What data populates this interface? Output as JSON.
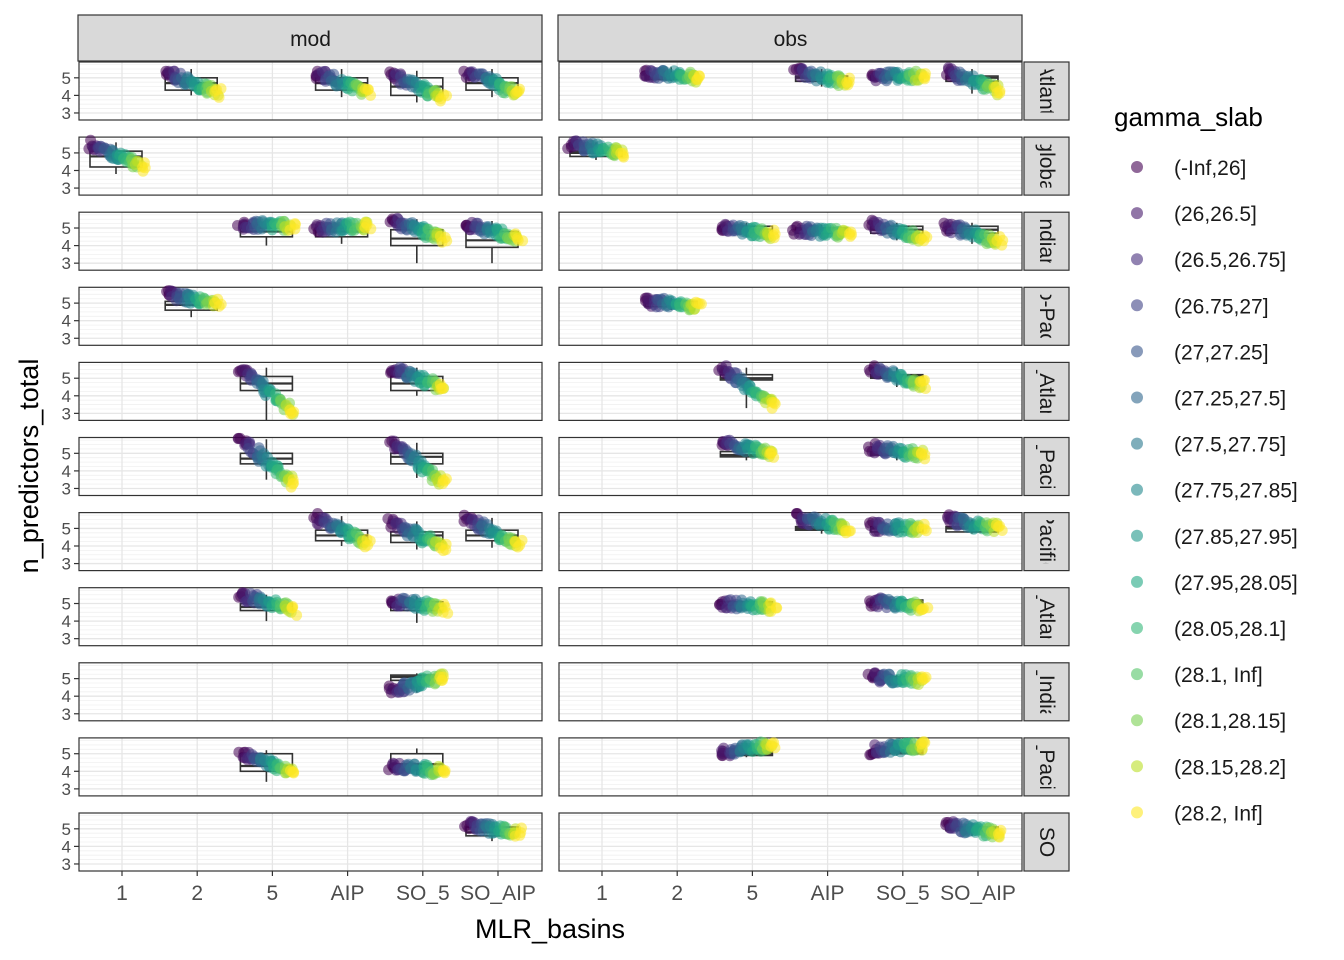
{
  "chart_data": {
    "type": "scatter",
    "xlabel": "MLR_basins",
    "ylabel": "n_predictors_total",
    "x_categories": [
      "1",
      "2",
      "5",
      "AIP",
      "SO_5",
      "SO_AIP"
    ],
    "y_ticks": [
      "3",
      "4",
      "5"
    ],
    "ylim": [
      2.6,
      5.9
    ],
    "columns": [
      "mod",
      "obs"
    ],
    "rows": [
      "Atlantic",
      "global",
      "Indian",
      "Indo-Pacific",
      "N_Atlantic",
      "N_Pacific",
      "Pacific",
      "S_Atlantic",
      "S_Indian",
      "S_Pacific",
      "SO"
    ],
    "strip_text_visible": [
      "Atlanti",
      "globa",
      "Indian",
      "o-Pac",
      "_Atlan",
      "_Pacif",
      "Pacific",
      "_Atlan",
      "_India",
      "_Pacif",
      "SO"
    ],
    "legend": {
      "title": "gamma_slab",
      "labels": [
        "(-Inf,26]",
        "(26,26.5]",
        "(26.5,26.75]",
        "(26.75,27]",
        "(27,27.25]",
        "(27.25,27.5]",
        "(27.5,27.75]",
        "(27.75,27.85]",
        "(27.85,27.95]",
        "(27.95,28.05]",
        "(28.05,28.1]",
        "(28.1, Inf]",
        "(28.1,28.15]",
        "(28.15,28.2]",
        "(28.2, Inf]"
      ],
      "colors": [
        "#440154",
        "#481a6c",
        "#472f7d",
        "#414487",
        "#39568c",
        "#31688e",
        "#2a788e",
        "#23888e",
        "#1f988b",
        "#22a884",
        "#35b779",
        "#54c568",
        "#7ad151",
        "#bbdf27",
        "#fde725"
      ]
    },
    "panels": [
      {
        "row": "Atlantic",
        "col": "mod",
        "groups": [
          {
            "x": "2",
            "start": 5.3,
            "end": 4.1,
            "q1": 4.3,
            "median": 4.7,
            "q3": 5.0,
            "wmin": 4.0,
            "wmax": 5.5
          },
          {
            "x": "AIP",
            "start": 5.3,
            "end": 4.1,
            "q1": 4.3,
            "median": 4.7,
            "q3": 5.0,
            "wmin": 3.9,
            "wmax": 5.5
          },
          {
            "x": "SO_5",
            "start": 5.2,
            "end": 3.8,
            "q1": 4.0,
            "median": 4.5,
            "q3": 5.0,
            "wmin": 3.6,
            "wmax": 5.4
          },
          {
            "x": "SO_AIP",
            "start": 5.3,
            "end": 4.1,
            "q1": 4.3,
            "median": 4.7,
            "q3": 5.0,
            "wmin": 3.9,
            "wmax": 5.5
          }
        ]
      },
      {
        "row": "Atlantic",
        "col": "obs",
        "groups": [
          {
            "x": "2",
            "start": 5.3,
            "end": 5.0,
            "q1": 4.9,
            "median": 5.0,
            "q3": 5.1,
            "wmin": 4.8,
            "wmax": 5.6
          },
          {
            "x": "AIP",
            "start": 5.4,
            "end": 4.7,
            "q1": 4.8,
            "median": 5.0,
            "q3": 5.1,
            "wmin": 4.5,
            "wmax": 5.5
          },
          {
            "x": "SO_5",
            "start": 5.1,
            "end": 5.1,
            "q1": 4.9,
            "median": 5.0,
            "q3": 5.1,
            "wmin": 4.8,
            "wmax": 5.3
          },
          {
            "x": "SO_AIP",
            "start": 5.4,
            "end": 4.2,
            "q1": 4.8,
            "median": 5.0,
            "q3": 5.1,
            "wmin": 4.1,
            "wmax": 5.5
          }
        ]
      },
      {
        "row": "global",
        "col": "mod",
        "groups": [
          {
            "x": "1",
            "start": 5.5,
            "end": 4.2,
            "q1": 4.2,
            "median": 4.8,
            "q3": 5.1,
            "wmin": 3.8,
            "wmax": 5.6
          }
        ]
      },
      {
        "row": "global",
        "col": "obs",
        "groups": [
          {
            "x": "1",
            "start": 5.5,
            "end": 5.0,
            "q1": 4.8,
            "median": 5.0,
            "q3": 5.1,
            "wmin": 4.6,
            "wmax": 5.6
          }
        ]
      },
      {
        "row": "Indian",
        "col": "mod",
        "groups": [
          {
            "x": "5",
            "start": 5.2,
            "end": 5.1,
            "q1": 4.5,
            "median": 4.8,
            "q3": 5.0,
            "wmin": 4.0,
            "wmax": 5.3
          },
          {
            "x": "AIP",
            "start": 5.0,
            "end": 5.1,
            "q1": 4.5,
            "median": 4.8,
            "q3": 5.0,
            "wmin": 4.1,
            "wmax": 5.2
          },
          {
            "x": "SO_5",
            "start": 5.4,
            "end": 4.4,
            "q1": 4.0,
            "median": 4.4,
            "q3": 4.9,
            "wmin": 3.0,
            "wmax": 5.5
          },
          {
            "x": "SO_AIP",
            "start": 5.2,
            "end": 4.4,
            "q1": 3.9,
            "median": 4.3,
            "q3": 4.8,
            "wmin": 3.0,
            "wmax": 5.4
          }
        ]
      },
      {
        "row": "Indian",
        "col": "obs",
        "groups": [
          {
            "x": "5",
            "start": 5.1,
            "end": 4.6,
            "q1": 4.8,
            "median": 4.9,
            "q3": 5.1,
            "wmin": 4.5,
            "wmax": 5.3
          },
          {
            "x": "AIP",
            "start": 4.9,
            "end": 4.7,
            "q1": 4.7,
            "median": 4.9,
            "q3": 5.0,
            "wmin": 4.5,
            "wmax": 5.2
          },
          {
            "x": "SO_5",
            "start": 5.2,
            "end": 4.4,
            "q1": 4.7,
            "median": 4.9,
            "q3": 5.1,
            "wmin": 4.3,
            "wmax": 5.3
          },
          {
            "x": "SO_AIP",
            "start": 5.1,
            "end": 4.2,
            "q1": 4.7,
            "median": 4.9,
            "q3": 5.1,
            "wmin": 4.1,
            "wmax": 5.3
          }
        ]
      },
      {
        "row": "Indo-Pacific",
        "col": "mod",
        "groups": [
          {
            "x": "2",
            "start": 5.5,
            "end": 5.0,
            "q1": 4.6,
            "median": 4.9,
            "q3": 5.1,
            "wmin": 4.2,
            "wmax": 5.6
          }
        ]
      },
      {
        "row": "Indo-Pacific",
        "col": "obs",
        "groups": [
          {
            "x": "2",
            "start": 5.1,
            "end": 4.8,
            "q1": 4.8,
            "median": 5.0,
            "q3": 5.1,
            "wmin": 4.6,
            "wmax": 5.3
          }
        ]
      },
      {
        "row": "N_Atlantic",
        "col": "mod",
        "groups": [
          {
            "x": "5",
            "start": 5.6,
            "end": 3.0,
            "q1": 4.3,
            "median": 4.7,
            "q3": 5.1,
            "wmin": 2.6,
            "wmax": 5.6
          },
          {
            "x": "SO_5",
            "start": 5.6,
            "end": 4.4,
            "q1": 4.3,
            "median": 4.7,
            "q3": 5.1,
            "wmin": 4.0,
            "wmax": 5.6
          }
        ]
      },
      {
        "row": "N_Atlantic",
        "col": "obs",
        "groups": [
          {
            "x": "5",
            "start": 5.6,
            "end": 3.4,
            "q1": 4.9,
            "median": 5.0,
            "q3": 5.2,
            "wmin": 3.3,
            "wmax": 5.6
          },
          {
            "x": "SO_5",
            "start": 5.5,
            "end": 4.6,
            "q1": 5.0,
            "median": 5.1,
            "q3": 5.2,
            "wmin": 4.5,
            "wmax": 5.6
          }
        ]
      },
      {
        "row": "N_Pacific",
        "col": "mod",
        "groups": [
          {
            "x": "5",
            "start": 5.8,
            "end": 3.2,
            "q1": 4.4,
            "median": 4.7,
            "q3": 5.0,
            "wmin": 3.5,
            "wmax": 5.8
          },
          {
            "x": "SO_5",
            "start": 5.6,
            "end": 3.3,
            "q1": 4.4,
            "median": 4.8,
            "q3": 5.0,
            "wmin": 3.6,
            "wmax": 5.6
          }
        ]
      },
      {
        "row": "N_Pacific",
        "col": "obs",
        "groups": [
          {
            "x": "5",
            "start": 5.6,
            "end": 5.0,
            "q1": 4.8,
            "median": 4.9,
            "q3": 5.1,
            "wmin": 4.6,
            "wmax": 5.6
          },
          {
            "x": "SO_5",
            "start": 5.3,
            "end": 4.9,
            "q1": 4.9,
            "median": 5.0,
            "q3": 5.1,
            "wmin": 4.6,
            "wmax": 5.4
          }
        ]
      },
      {
        "row": "Pacific",
        "col": "mod",
        "groups": [
          {
            "x": "AIP",
            "start": 5.6,
            "end": 4.1,
            "q1": 4.3,
            "median": 4.6,
            "q3": 4.9,
            "wmin": 4.0,
            "wmax": 5.7
          },
          {
            "x": "SO_5",
            "start": 5.3,
            "end": 3.9,
            "q1": 4.2,
            "median": 4.6,
            "q3": 4.8,
            "wmin": 3.8,
            "wmax": 5.4
          },
          {
            "x": "SO_AIP",
            "start": 5.5,
            "end": 4.1,
            "q1": 4.3,
            "median": 4.6,
            "q3": 4.9,
            "wmin": 3.9,
            "wmax": 5.6
          }
        ]
      },
      {
        "row": "Pacific",
        "col": "obs",
        "groups": [
          {
            "x": "AIP",
            "start": 5.6,
            "end": 5.0,
            "q1": 4.9,
            "median": 5.0,
            "q3": 5.1,
            "wmin": 4.7,
            "wmax": 5.6
          },
          {
            "x": "SO_5",
            "start": 5.1,
            "end": 5.0,
            "q1": 4.8,
            "median": 5.0,
            "q3": 5.1,
            "wmin": 4.6,
            "wmax": 5.3
          },
          {
            "x": "SO_AIP",
            "start": 5.5,
            "end": 5.0,
            "q1": 4.8,
            "median": 5.0,
            "q3": 5.1,
            "wmin": 4.7,
            "wmax": 5.5
          }
        ]
      },
      {
        "row": "S_Atlantic",
        "col": "mod",
        "groups": [
          {
            "x": "5",
            "start": 5.5,
            "end": 4.6,
            "q1": 4.6,
            "median": 4.8,
            "q3": 5.0,
            "wmin": 4.0,
            "wmax": 5.5
          },
          {
            "x": "SO_5",
            "start": 5.2,
            "end": 4.7,
            "q1": 4.6,
            "median": 4.8,
            "q3": 5.1,
            "wmin": 3.9,
            "wmax": 5.4
          }
        ]
      },
      {
        "row": "S_Atlantic",
        "col": "obs",
        "groups": [
          {
            "x": "5",
            "start": 5.0,
            "end": 4.8,
            "q1": 4.9,
            "median": 5.0,
            "q3": 5.1,
            "wmin": 4.6,
            "wmax": 5.2
          },
          {
            "x": "SO_5",
            "start": 5.1,
            "end": 4.8,
            "q1": 5.0,
            "median": 5.1,
            "q3": 5.2,
            "wmin": 4.6,
            "wmax": 5.3
          }
        ]
      },
      {
        "row": "S_Indian",
        "col": "mod",
        "groups": [
          {
            "x": "SO_5",
            "start": 4.3,
            "end": 5.1,
            "q1": 4.9,
            "median": 5.1,
            "q3": 5.2,
            "wmin": 4.2,
            "wmax": 5.3
          }
        ]
      },
      {
        "row": "S_Indian",
        "col": "obs",
        "groups": [
          {
            "x": "SO_5",
            "start": 5.1,
            "end": 4.9,
            "q1": 4.9,
            "median": 5.0,
            "q3": 5.1,
            "wmin": 4.8,
            "wmax": 5.2
          }
        ]
      },
      {
        "row": "S_Pacific",
        "col": "mod",
        "groups": [
          {
            "x": "5",
            "start": 5.0,
            "end": 4.0,
            "q1": 4.0,
            "median": 4.3,
            "q3": 5.0,
            "wmin": 3.4,
            "wmax": 5.2
          },
          {
            "x": "SO_5",
            "start": 4.3,
            "end": 4.0,
            "q1": 4.1,
            "median": 4.4,
            "q3": 5.0,
            "wmin": 3.8,
            "wmax": 5.3
          }
        ]
      },
      {
        "row": "S_Pacific",
        "col": "obs",
        "groups": [
          {
            "x": "5",
            "start": 5.1,
            "end": 5.5,
            "q1": 4.9,
            "median": 5.0,
            "q3": 5.1,
            "wmin": 4.8,
            "wmax": 5.6
          },
          {
            "x": "SO_5",
            "start": 5.2,
            "end": 5.5,
            "q1": 5.0,
            "median": 5.1,
            "q3": 5.2,
            "wmin": 4.9,
            "wmax": 5.6
          }
        ]
      },
      {
        "row": "SO",
        "col": "mod",
        "groups": [
          {
            "x": "SO_AIP",
            "start": 5.2,
            "end": 4.8,
            "q1": 4.6,
            "median": 4.8,
            "q3": 5.1,
            "wmin": 4.3,
            "wmax": 5.3
          }
        ]
      },
      {
        "row": "SO",
        "col": "obs",
        "groups": [
          {
            "x": "SO_AIP",
            "start": 5.2,
            "end": 4.7,
            "q1": 4.9,
            "median": 5.0,
            "q3": 5.1,
            "wmin": 4.6,
            "wmax": 5.3
          }
        ]
      }
    ]
  }
}
